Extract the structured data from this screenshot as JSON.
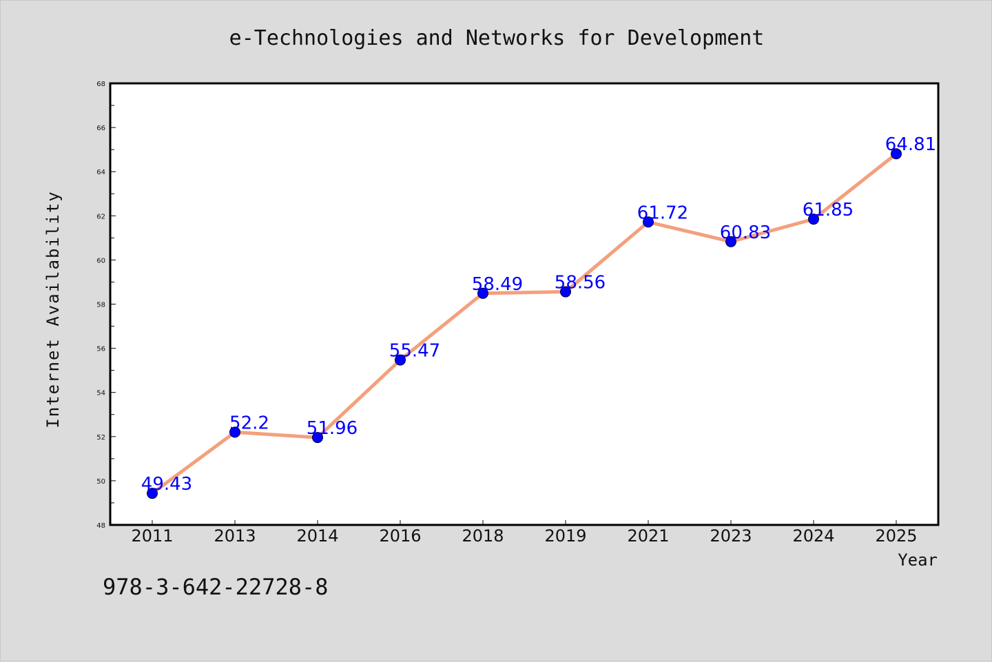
{
  "chart_data": {
    "type": "line",
    "title": "e-Technologies and Networks for Development",
    "xlabel": "Year",
    "ylabel": "Internet Availability",
    "categories": [
      "2011",
      "2013",
      "2014",
      "2016",
      "2018",
      "2019",
      "2021",
      "2023",
      "2024",
      "2025"
    ],
    "series": [
      {
        "values": [
          49.43,
          52.2,
          51.96,
          55.47,
          58.49,
          58.56,
          61.72,
          60.83,
          61.85,
          64.81
        ],
        "line_color": "#f4a07c",
        "marker_color": "#0000ff"
      }
    ],
    "data_labels": [
      "49.43",
      "52.2",
      "51.96",
      "55.47",
      "58.49",
      "58.56",
      "61.72",
      "60.83",
      "61.85",
      "64.81"
    ],
    "ylim": [
      48,
      68
    ],
    "y_ticks": [
      "48",
      "50",
      "52",
      "54",
      "56",
      "58",
      "60",
      "62",
      "64",
      "66",
      "68"
    ],
    "grid": false,
    "legend": "none"
  },
  "footer": {
    "isbn": "978-3-642-22728-8"
  },
  "colors": {
    "background": "#dcdcdc",
    "plot_background": "#ffffff",
    "line": "#f4a07c",
    "marker": "#0000ff",
    "data_label": "#0000ff"
  }
}
